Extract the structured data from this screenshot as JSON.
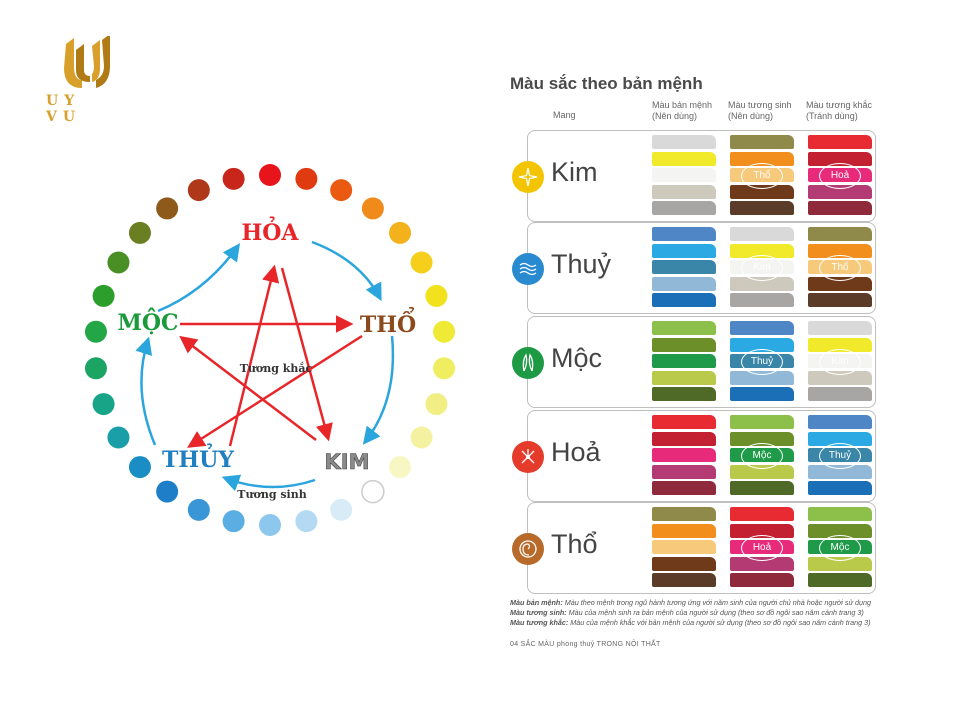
{
  "logo": {
    "text": "UY VU",
    "color": "#d8a02a"
  },
  "wheel": {
    "elements": [
      {
        "id": "hoa",
        "label": "HỎA",
        "color": "#e8262a"
      },
      {
        "id": "tho",
        "label": "THỔ",
        "color": "#8b4a1e"
      },
      {
        "id": "kim",
        "label": "KIM",
        "color": "#8a8a8a"
      },
      {
        "id": "thuy",
        "label": "THỦY",
        "color": "#1f7fc0"
      },
      {
        "id": "moc",
        "label": "MỘC",
        "color": "#1a9a3a"
      }
    ],
    "center_label": "Tương khắc",
    "bottom_label": "Tương sinh",
    "dot_colors": [
      "#e8141c",
      "#e03a10",
      "#ea5a10",
      "#f08a1a",
      "#f3b21c",
      "#f5cf1c",
      "#f2e21e",
      "#eeea36",
      "#eeee60",
      "#f1ef84",
      "#f4f1a0",
      "#f7f7c4",
      "#ffffff",
      "#d8ecf8",
      "#b4daf3",
      "#8ec7ee",
      "#5aaee3",
      "#3a96d6",
      "#1e7ec8",
      "#1a8ec4",
      "#1a9ea8",
      "#18a486",
      "#1ca464",
      "#22a646",
      "#2c9e2c",
      "#4a8e26",
      "#6a7e22",
      "#8e5a1c",
      "#b0381a",
      "#c8261a"
    ]
  },
  "panel": {
    "title": "Màu sắc theo bản mệnh",
    "headers": {
      "mang": "Mang",
      "col1": [
        "Màu bản mệnh",
        "(Nên dùng)"
      ],
      "col2": [
        "Màu tương sinh",
        "(Nên dùng)"
      ],
      "col3": [
        "Màu tương khắc",
        "(Tránh dùng)"
      ]
    },
    "rows": [
      {
        "name": "Kim",
        "icon": "sparkle-icon",
        "icon_color": "#f2c500",
        "col1": [
          "#d9d9d9",
          "#f1ea2a",
          "#f4f4f2",
          "#cdc9bd",
          "#a8a6a4"
        ],
        "col2": [
          "#8f8a4a",
          "#f28e1c",
          "#f7c97a",
          "#6e3a1a",
          "#5a3c28"
        ],
        "col2_label": "Thổ",
        "col3": [
          "#e82a32",
          "#c32032",
          "#e82a7a",
          "#b33a72",
          "#8e2a3c"
        ],
        "col3_label": "Hoả"
      },
      {
        "name": "Thuỷ",
        "icon": "waves-icon",
        "icon_color": "#2a8acf",
        "col1": [
          "#4f86c6",
          "#2aa9e2",
          "#3a86a8",
          "#92b8d8",
          "#1b6fb6"
        ],
        "col2": [
          "#d9d9d9",
          "#f1ea2a",
          "#f4f4f2",
          "#cdc9bd",
          "#a8a6a4"
        ],
        "col2_label": "Kim",
        "col3": [
          "#8f8a4a",
          "#f28e1c",
          "#f7c97a",
          "#6e3a1a",
          "#5a3c28"
        ],
        "col3_label": "Thổ"
      },
      {
        "name": "Mộc",
        "icon": "leaves-icon",
        "icon_color": "#1d9a43",
        "col1": [
          "#8cc04a",
          "#6d8f2a",
          "#1f9a48",
          "#b9c94a",
          "#4e6a26"
        ],
        "col2": [
          "#4f86c6",
          "#2aa9e2",
          "#3a86a8",
          "#92b8d8",
          "#1b6fb6"
        ],
        "col2_label": "Thuỷ",
        "col3": [
          "#d9d9d9",
          "#f1ea2a",
          "#f4f4f2",
          "#cdc9bd",
          "#a8a6a4"
        ],
        "col3_label": "Kim"
      },
      {
        "name": "Hoả",
        "icon": "fire-icon",
        "icon_color": "#e43b2a",
        "col1": [
          "#e82a32",
          "#c32032",
          "#e82a7a",
          "#b33a72",
          "#8e2a3c"
        ],
        "col2": [
          "#8cc04a",
          "#6d8f2a",
          "#1f9a48",
          "#b9c94a",
          "#4e6a26"
        ],
        "col2_label": "Mộc",
        "col3": [
          "#4f86c6",
          "#2aa9e2",
          "#3a86a8",
          "#92b8d8",
          "#1b6fb6"
        ],
        "col3_label": "Thuỷ"
      },
      {
        "name": "Thổ",
        "icon": "spiral-icon",
        "icon_color": "#b86a2a",
        "col1": [
          "#8f8a4a",
          "#f28e1c",
          "#f7c97a",
          "#6e3a1a",
          "#5a3c28"
        ],
        "col2": [
          "#e82a32",
          "#c32032",
          "#e82a7a",
          "#b33a72",
          "#8e2a3c"
        ],
        "col2_label": "Hoả",
        "col3": [
          "#8cc04a",
          "#6d8f2a",
          "#1f9a48",
          "#b9c94a",
          "#4e6a26"
        ],
        "col3_label": "Mộc"
      }
    ],
    "notes": [
      {
        "term": "Màu bản mệnh:",
        "text": "Màu theo mệnh trong ngũ hành tương ứng với năm sinh của người chủ nhà hoặc người sử dụng"
      },
      {
        "term": "Màu tương sinh:",
        "text": "Màu của mệnh sinh ra bản mệnh của người sử dụng (theo sơ đồ ngôi sao năm cánh trang 3)"
      },
      {
        "term": "Màu tương khắc:",
        "text": "Màu của mệnh khắc với bản mệnh của người sử dụng (theo sơ đồ ngôi sao năm cánh trang 3)"
      }
    ],
    "footer": "04  SẮC MÀU phong thuỷ TRONG NỘI THẤT"
  }
}
